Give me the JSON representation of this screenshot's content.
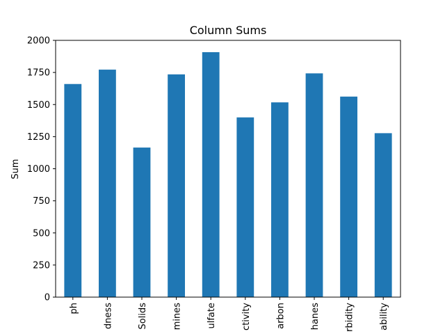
{
  "chart_data": {
    "type": "bar",
    "title": "Column Sums",
    "xlabel": "",
    "ylabel": "Sum",
    "categories": [
      "ph",
      "dness",
      "Solids",
      "mines",
      "ulfate",
      "ctivity",
      "arbon",
      "hanes",
      "rbidity",
      "ability"
    ],
    "values": [
      1660,
      1772,
      1165,
      1735,
      1908,
      1400,
      1517,
      1743,
      1562,
      1277
    ],
    "ylim": [
      0,
      2000
    ],
    "yticks": [
      0,
      250,
      500,
      750,
      1000,
      1250,
      1500,
      1750,
      2000
    ],
    "bar_color": "#1f77b4",
    "grid": false
  }
}
